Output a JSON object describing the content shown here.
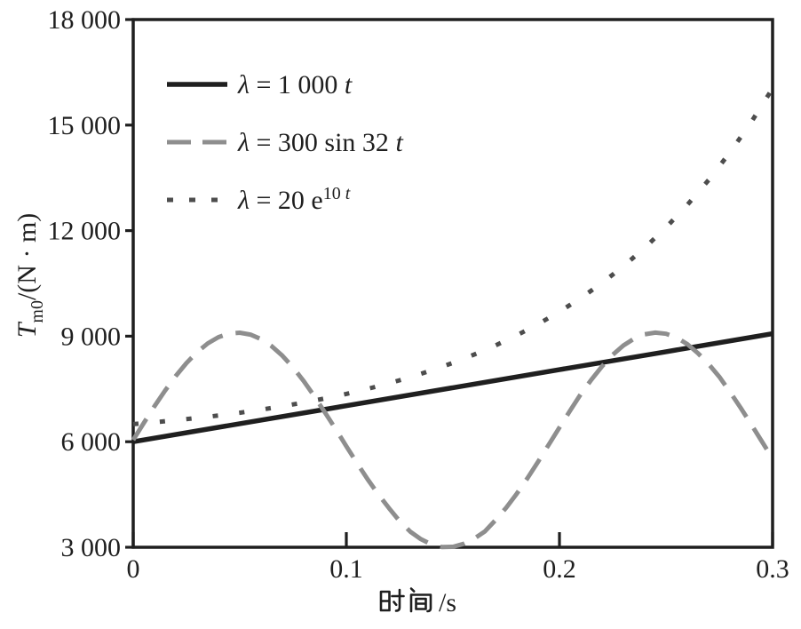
{
  "figure": {
    "background": "#ffffff"
  },
  "chart_data": {
    "type": "line",
    "title": "",
    "xlabel": "时间/s",
    "ylabel": "T_m0/(N · m)",
    "ylabel_parts": [
      {
        "t": "T",
        "i": true
      },
      {
        "t": "m0",
        "sub": true
      },
      {
        "t": "/(N · m)"
      }
    ],
    "xlim": [
      0,
      0.3
    ],
    "ylim": [
      3000,
      18000
    ],
    "grid": false,
    "legend_position": "upper-left-inside",
    "axis_color": "#1f1f1f",
    "xticks": [
      {
        "v": 0,
        "label": "0"
      },
      {
        "v": 0.1,
        "label": "0.1"
      },
      {
        "v": 0.2,
        "label": "0.2"
      },
      {
        "v": 0.3,
        "label": "0.3"
      }
    ],
    "yticks": [
      {
        "v": 3000,
        "label": "3 000"
      },
      {
        "v": 6000,
        "label": "6 000"
      },
      {
        "v": 9000,
        "label": "9 000"
      },
      {
        "v": 12000,
        "label": "12 000"
      },
      {
        "v": 15000,
        "label": "15 000"
      },
      {
        "v": 18000,
        "label": "18 000"
      }
    ],
    "series": [
      {
        "id": "lambda-1000t",
        "name": "λ = 1 000 t",
        "label_parts": [
          {
            "t": "λ",
            "i": true
          },
          {
            "t": " = 1 000 "
          },
          {
            "t": "t",
            "i": true
          }
        ],
        "style": "solid",
        "color": "#1f1f1f",
        "width": 5.5,
        "points": [
          [
            0,
            6000
          ],
          [
            0.05,
            6512
          ],
          [
            0.1,
            7023
          ],
          [
            0.15,
            7535
          ],
          [
            0.2,
            8047
          ],
          [
            0.25,
            8558
          ],
          [
            0.3,
            9070
          ]
        ]
      },
      {
        "id": "lambda-300sin32t",
        "name": "λ = 300 sin 32 t",
        "label_parts": [
          {
            "t": "λ",
            "i": true
          },
          {
            "t": " = 300 sin 32 "
          },
          {
            "t": "t",
            "i": true
          }
        ],
        "style": "dashed",
        "color": "#8e8e8e",
        "width": 5,
        "dash": [
          28,
          15
        ],
        "legend_dash": [
          27,
          13
        ],
        "points": [
          [
            0,
            6050
          ],
          [
            0.005,
            6536
          ],
          [
            0.01,
            7010
          ],
          [
            0.015,
            7458
          ],
          [
            0.02,
            7871
          ],
          [
            0.025,
            8238
          ],
          [
            0.03,
            8549
          ],
          [
            0.035,
            8795
          ],
          [
            0.04,
            8972
          ],
          [
            0.045,
            9074
          ],
          [
            0.05,
            9099
          ],
          [
            0.055,
            9046
          ],
          [
            0.06,
            8916
          ],
          [
            0.065,
            8714
          ],
          [
            0.07,
            8444
          ],
          [
            0.075,
            8110
          ],
          [
            0.08,
            7724
          ],
          [
            0.085,
            7291
          ],
          [
            0.09,
            6829
          ],
          [
            0.095,
            6358
          ],
          [
            0.1,
            5872
          ],
          [
            0.105,
            5394
          ],
          [
            0.11,
            4932
          ],
          [
            0.115,
            4505
          ],
          [
            0.12,
            4114
          ],
          [
            0.125,
            3742
          ],
          [
            0.13,
            3445
          ],
          [
            0.135,
            3231
          ],
          [
            0.14,
            3081
          ],
          [
            0.145,
            3006
          ],
          [
            0.15,
            3012
          ],
          [
            0.155,
            3095
          ],
          [
            0.16,
            3244
          ],
          [
            0.165,
            3450
          ],
          [
            0.17,
            3772
          ],
          [
            0.175,
            4125
          ],
          [
            0.18,
            4525
          ],
          [
            0.185,
            4965
          ],
          [
            0.19,
            5434
          ],
          [
            0.195,
            5918
          ],
          [
            0.2,
            6405
          ],
          [
            0.205,
            6884
          ],
          [
            0.21,
            7354
          ],
          [
            0.215,
            7764
          ],
          [
            0.22,
            8143
          ],
          [
            0.225,
            8471
          ],
          [
            0.23,
            8735
          ],
          [
            0.235,
            8930
          ],
          [
            0.24,
            9054
          ],
          [
            0.245,
            9100
          ],
          [
            0.25,
            9068
          ],
          [
            0.255,
            8961
          ],
          [
            0.26,
            8772
          ],
          [
            0.265,
            8516
          ],
          [
            0.27,
            8206
          ],
          [
            0.275,
            7845
          ],
          [
            0.28,
            7416
          ],
          [
            0.285,
            6964
          ],
          [
            0.29,
            6490
          ],
          [
            0.295,
            6004
          ],
          [
            0.3,
            5518
          ]
        ]
      },
      {
        "id": "lambda-20e10t",
        "name": "λ = 20 e^(10 t)",
        "label_parts": [
          {
            "t": "λ",
            "i": true
          },
          {
            "t": " = 20 e"
          },
          {
            "t": "10 ",
            "sup": true
          },
          {
            "t": "t",
            "i": true,
            "sup": true
          }
        ],
        "style": "dotted",
        "color": "#4d4d4d",
        "width": 5,
        "dash": [
          6,
          24
        ],
        "legend_dash": [
          7,
          18
        ],
        "points": [
          [
            0,
            6500
          ],
          [
            0.01,
            6553
          ],
          [
            0.02,
            6611
          ],
          [
            0.03,
            6675
          ],
          [
            0.04,
            6746
          ],
          [
            0.05,
            6824
          ],
          [
            0.06,
            6911
          ],
          [
            0.07,
            7007
          ],
          [
            0.08,
            7113
          ],
          [
            0.09,
            7230
          ],
          [
            0.1,
            7359
          ],
          [
            0.11,
            7502
          ],
          [
            0.12,
            7660
          ],
          [
            0.13,
            7835
          ],
          [
            0.14,
            8028
          ],
          [
            0.15,
            8241
          ],
          [
            0.16,
            8477
          ],
          [
            0.17,
            8737
          ],
          [
            0.18,
            9025
          ],
          [
            0.19,
            9343
          ],
          [
            0.2,
            9695
          ],
          [
            0.21,
            10083
          ],
          [
            0.22,
            10513
          ],
          [
            0.23,
            10987
          ],
          [
            0.24,
            11512
          ],
          [
            0.25,
            12091
          ],
          [
            0.26,
            12732
          ],
          [
            0.27,
            13440
          ],
          [
            0.28,
            14222
          ],
          [
            0.29,
            15087
          ],
          [
            0.3,
            16043
          ]
        ]
      }
    ]
  }
}
